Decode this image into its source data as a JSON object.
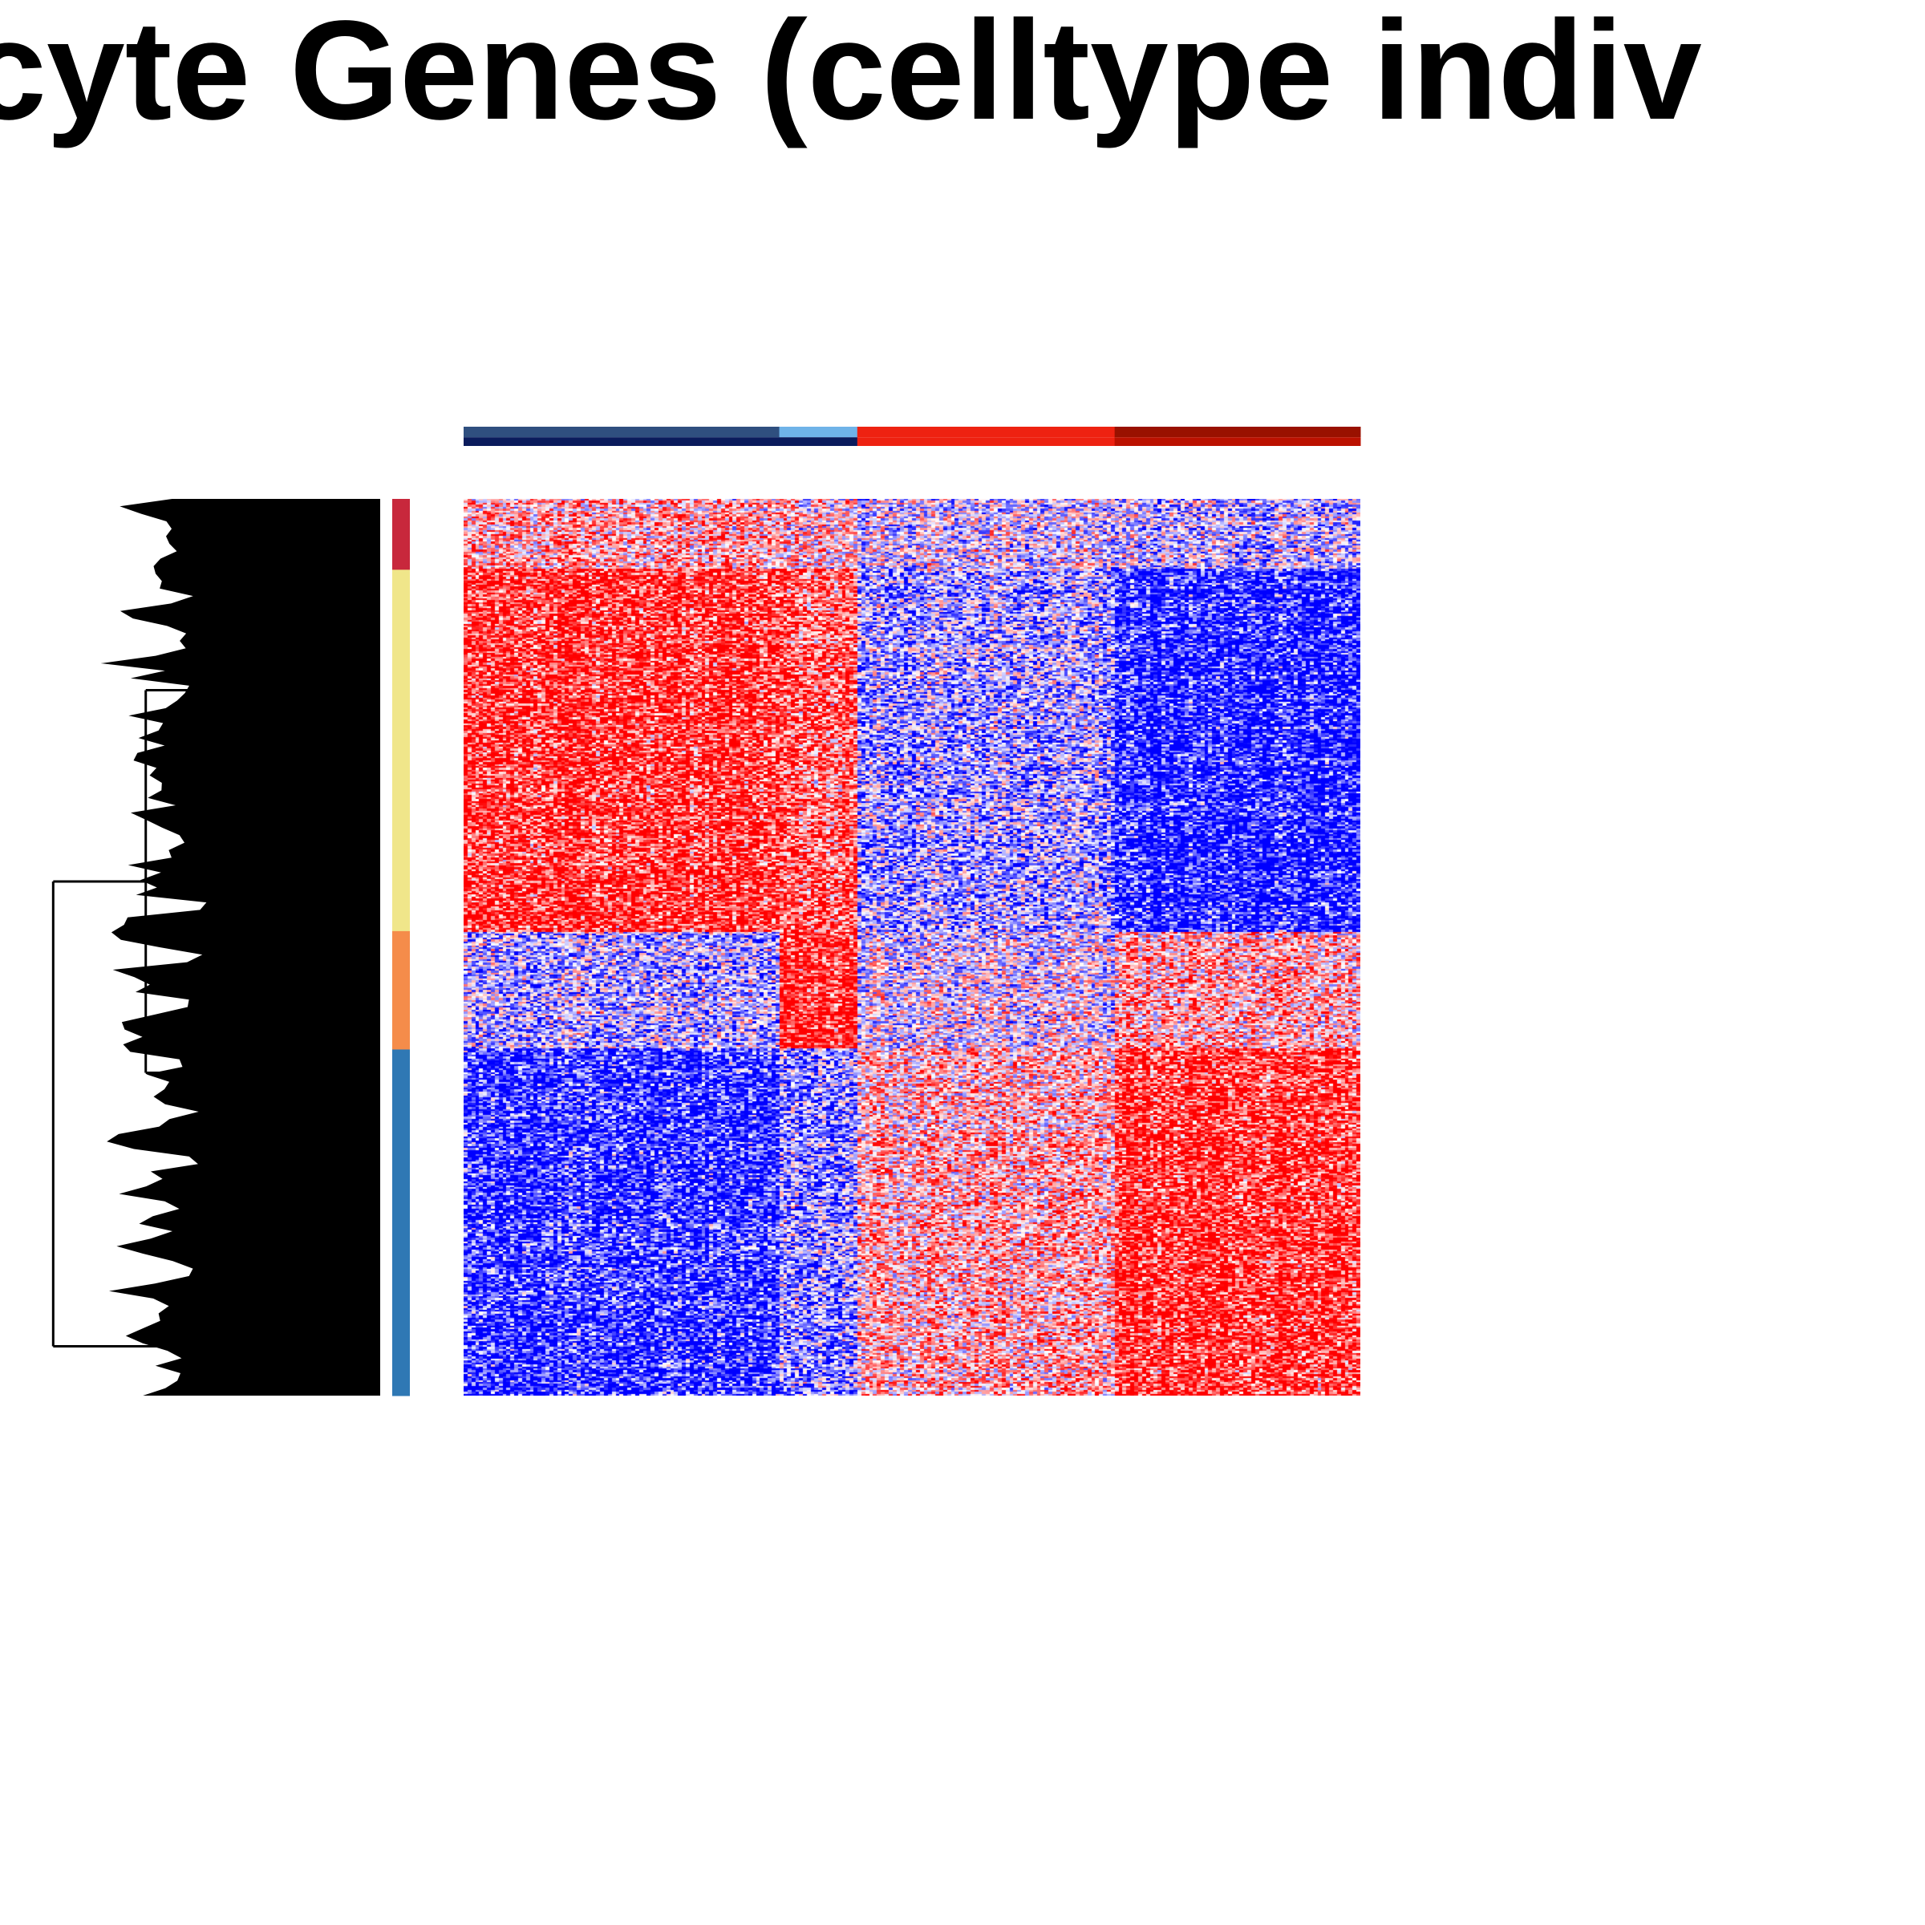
{
  "chart_data": {
    "type": "heatmap",
    "title": "cyte Genes (celltype indiv",
    "column_annotation": [
      {
        "group": 1,
        "fraction": 0.352,
        "color_top": "#2f4f7f",
        "color_bottom": "#0a1b5c"
      },
      {
        "group": 2,
        "fraction": 0.087,
        "color_top": "#6fb3e8",
        "color_bottom": "#0a1b5c"
      },
      {
        "group": 3,
        "fraction": 0.287,
        "color_top": "#ee2211",
        "color_bottom": "#ee2211"
      },
      {
        "group": 4,
        "fraction": 0.274,
        "color_top": "#991100",
        "color_bottom": "#bb1100"
      }
    ],
    "row_clusters": [
      {
        "cluster": 1,
        "fraction": 0.079,
        "color": "#c8283c"
      },
      {
        "cluster": 2,
        "fraction": 0.403,
        "color": "#f0e68a"
      },
      {
        "cluster": 3,
        "fraction": 0.132,
        "color": "#f58c4a"
      },
      {
        "cluster": 4,
        "fraction": 0.386,
        "color": "#2f78b4"
      }
    ],
    "color_scale": {
      "low": "#0000ff",
      "mid": "#ffffff",
      "high": "#ff0000"
    },
    "block_pattern": [
      {
        "row_cluster": 1,
        "means": [
          0.3,
          0.1,
          -0.1,
          -0.2
        ]
      },
      {
        "row_cluster": 2,
        "means": [
          0.85,
          0.6,
          -0.35,
          -0.9
        ]
      },
      {
        "row_cluster": 3,
        "means": [
          -0.3,
          0.9,
          -0.1,
          0.3
        ]
      },
      {
        "row_cluster": 4,
        "means": [
          -0.85,
          -0.5,
          0.25,
          0.85
        ]
      }
    ],
    "dendrogram": true,
    "legend": "none"
  },
  "colors": {
    "dendrogram_fill": "#000000",
    "title": "#000000"
  }
}
